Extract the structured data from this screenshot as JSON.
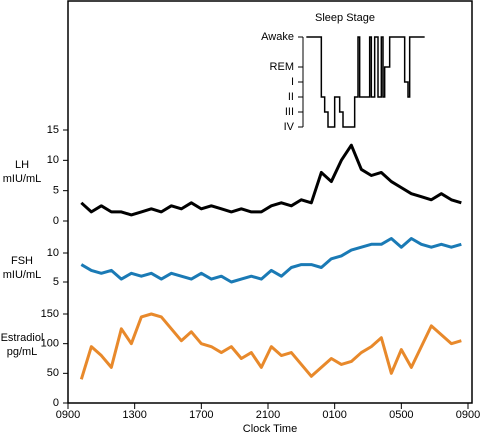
{
  "chart_data": [
    {
      "type": "step",
      "title": "Sleep Stage",
      "xlim": [
        9,
        33
      ],
      "ylim": [
        0,
        6
      ],
      "yticks": [
        {
          "value": 6,
          "label": "Awake"
        },
        {
          "value": 4,
          "label": "REM"
        },
        {
          "value": 3,
          "label": "I"
        },
        {
          "value": 2,
          "label": "II"
        },
        {
          "value": 1,
          "label": "III"
        },
        {
          "value": 0,
          "label": "IV"
        }
      ],
      "x": [
        23.3,
        24.2,
        24.4,
        24.6,
        25.0,
        25.3,
        25.5,
        26.2,
        26.4,
        26.5,
        27.1,
        27.2,
        27.4,
        27.6,
        27.8,
        27.9,
        28.0,
        28.3,
        29.2,
        29.4,
        29.5,
        30.4
      ],
      "series": [
        {
          "name": "Sleep Stage",
          "color": "#000000",
          "values": [
            6,
            2,
            1,
            0,
            2,
            1,
            0,
            2,
            6,
            2,
            6,
            2,
            6,
            2,
            6,
            2,
            4,
            6,
            3,
            2,
            6,
            6
          ]
        }
      ]
    },
    {
      "type": "line",
      "ylabel": [
        "LH",
        "mIU/mL"
      ],
      "xlim": [
        9,
        33
      ],
      "ylim": [
        0,
        15
      ],
      "yticks": [
        0,
        5,
        10,
        15
      ],
      "x": [
        9.8,
        10.4,
        11.0,
        11.6,
        12.2,
        12.8,
        13.4,
        14.0,
        14.6,
        15.2,
        15.8,
        16.4,
        17.0,
        17.6,
        18.2,
        18.8,
        19.4,
        20.0,
        20.6,
        21.2,
        21.8,
        22.4,
        23.0,
        23.6,
        24.2,
        24.8,
        25.4,
        26.0,
        26.6,
        27.2,
        27.8,
        28.4,
        29.0,
        29.6,
        30.2,
        30.8,
        31.4,
        32.0,
        32.6
      ],
      "series": [
        {
          "name": "LH",
          "color": "#000000",
          "values": [
            3,
            1.5,
            2.5,
            1.5,
            1.5,
            1,
            1.5,
            2,
            1.5,
            2.5,
            2,
            3,
            2,
            2.5,
            2,
            1.5,
            2,
            1.5,
            1.5,
            2.5,
            3,
            2.5,
            3.5,
            3,
            8,
            6.5,
            10,
            12.5,
            8.5,
            7.5,
            8,
            6.5,
            5.5,
            4.5,
            4,
            3.5,
            4.5,
            3.5,
            3
          ]
        }
      ]
    },
    {
      "type": "line",
      "ylabel": [
        "FSH",
        "mIU/mL"
      ],
      "xlim": [
        9,
        33
      ],
      "ylim": [
        3,
        13
      ],
      "yticks": [
        5,
        10
      ],
      "x": [
        9.8,
        10.4,
        11.0,
        11.6,
        12.2,
        12.8,
        13.4,
        14.0,
        14.6,
        15.2,
        15.8,
        16.4,
        17.0,
        17.6,
        18.2,
        18.8,
        19.4,
        20.0,
        20.6,
        21.2,
        21.8,
        22.4,
        23.0,
        23.6,
        24.2,
        24.8,
        25.4,
        26.0,
        26.6,
        27.2,
        27.8,
        28.4,
        29.0,
        29.6,
        30.2,
        30.8,
        31.4,
        32.0,
        32.6
      ],
      "series": [
        {
          "name": "FSH",
          "color": "#1a7ab5",
          "values": [
            8,
            7,
            6.5,
            7,
            5.5,
            6.5,
            6,
            6.5,
            5.5,
            6.5,
            6,
            5.5,
            6.5,
            5.5,
            6,
            5,
            5.5,
            6,
            5.5,
            7,
            6,
            7.5,
            8,
            8,
            7.5,
            9,
            9.5,
            10.5,
            11,
            11.5,
            11.5,
            12.5,
            11,
            12.5,
            11.5,
            11,
            11.5,
            11,
            11.5
          ]
        }
      ]
    },
    {
      "type": "line",
      "ylabel": [
        "Estradiol",
        "pg/mL"
      ],
      "xlabel": "Clock Time",
      "xlim": [
        9,
        33
      ],
      "ylim": [
        0,
        150
      ],
      "yticks": [
        0,
        50,
        100,
        150
      ],
      "xticks": [
        {
          "value": 9,
          "label": "0900"
        },
        {
          "value": 13,
          "label": "1300"
        },
        {
          "value": 17,
          "label": "1700"
        },
        {
          "value": 21,
          "label": "2100"
        },
        {
          "value": 25,
          "label": "0100"
        },
        {
          "value": 29,
          "label": "0500"
        },
        {
          "value": 33,
          "label": "0900"
        }
      ],
      "x": [
        9.8,
        10.4,
        11.0,
        11.6,
        12.2,
        12.8,
        13.4,
        14.0,
        14.6,
        15.2,
        15.8,
        16.4,
        17.0,
        17.6,
        18.2,
        18.8,
        19.4,
        20.0,
        20.6,
        21.2,
        21.8,
        22.4,
        23.0,
        23.6,
        24.2,
        24.8,
        25.4,
        26.0,
        26.6,
        27.2,
        27.8,
        28.4,
        29.0,
        29.6,
        30.2,
        30.8,
        31.4,
        32.0,
        32.6
      ],
      "series": [
        {
          "name": "Estradiol",
          "color": "#e8892b",
          "values": [
            40,
            95,
            80,
            60,
            125,
            100,
            145,
            150,
            145,
            125,
            105,
            120,
            100,
            95,
            85,
            95,
            75,
            85,
            60,
            95,
            80,
            85,
            65,
            45,
            60,
            75,
            65,
            70,
            85,
            95,
            110,
            50,
            90,
            60,
            95,
            130,
            115,
            100,
            105
          ]
        }
      ]
    }
  ]
}
